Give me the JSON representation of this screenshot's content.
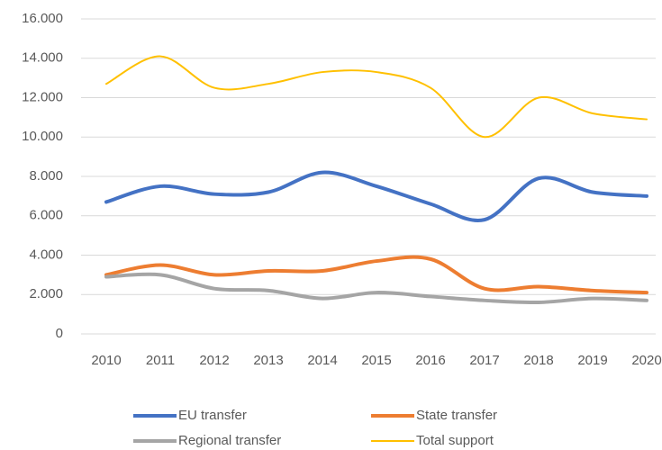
{
  "chart_data": {
    "type": "line",
    "categories": [
      "2010",
      "2011",
      "2012",
      "2013",
      "2014",
      "2015",
      "2016",
      "2017",
      "2018",
      "2019",
      "2020"
    ],
    "series": [
      {
        "name": "EU transfer",
        "color": "#4472c4",
        "width": 4,
        "values": [
          6700,
          7500,
          7100,
          7200,
          8200,
          7500,
          6600,
          5800,
          7900,
          7200,
          7000
        ]
      },
      {
        "name": "State transfer",
        "color": "#ed7d31",
        "width": 4,
        "values": [
          3000,
          3500,
          3000,
          3200,
          3200,
          3700,
          3800,
          2300,
          2400,
          2200,
          2100
        ]
      },
      {
        "name": "Regional transfer",
        "color": "#a5a5a5",
        "width": 4,
        "values": [
          2900,
          3000,
          2300,
          2200,
          1800,
          2100,
          1900,
          1700,
          1600,
          1800,
          1700
        ]
      },
      {
        "name": "Total support",
        "color": "#ffc000",
        "width": 2,
        "values": [
          12700,
          14100,
          12500,
          12700,
          13300,
          13300,
          12500,
          10000,
          12000,
          11200,
          10900
        ]
      }
    ],
    "ylim": [
      0,
      16000
    ],
    "yticks": [
      0,
      {
        "value": 2000,
        "label": "2.000"
      },
      {
        "value": 4000,
        "label": "4.000"
      },
      {
        "value": 6000,
        "label": "6.000"
      },
      {
        "value": 8000,
        "label": "8.000"
      },
      {
        "value": 10000,
        "label": "10.000"
      },
      {
        "value": 12000,
        "label": "12.000"
      },
      {
        "value": 14000,
        "label": "14.000"
      },
      {
        "value": 16000,
        "label": "16.000"
      }
    ],
    "grid": true,
    "smooth": true,
    "legend": "bottom"
  }
}
